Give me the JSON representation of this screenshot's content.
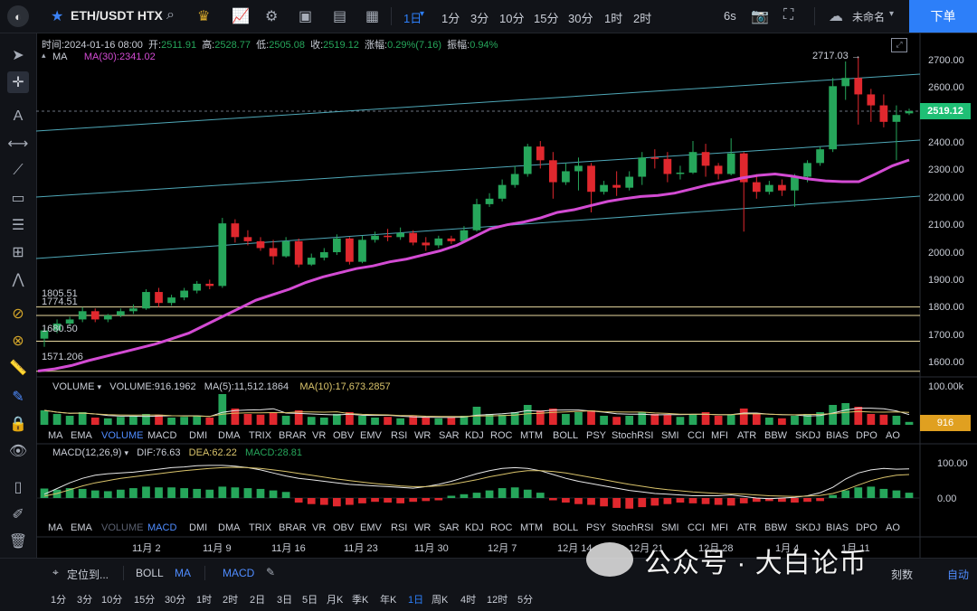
{
  "topbar": {
    "symbol": "ETH/USDT HTX",
    "timeframes": [
      "1日",
      "1分",
      "3分",
      "10分",
      "15分",
      "30分",
      "1时",
      "2时"
    ],
    "active_timeframe": "1日",
    "interval_setting": "6s",
    "layout_name": "未命名",
    "order_button": "下单"
  },
  "ohlc": {
    "time": "时间:2024-01-16 08:00",
    "open_label": "开:",
    "open": "2511.91",
    "high_label": "高:",
    "high": "2528.77",
    "low_label": "低:",
    "low": "2505.08",
    "close_label": "收:",
    "close": "2519.12",
    "change_label": "涨幅:",
    "change": "0.29%(7.16)",
    "amp_label": "振幅:",
    "amp": "0.94%"
  },
  "ma_legend": {
    "name": "MA",
    "ma30": "MA(30):2341.02"
  },
  "price_axis": {
    "ticks": [
      "2700.00",
      "2600.00",
      "2500.00",
      "2400.00",
      "2300.00",
      "2200.00",
      "2100.00",
      "2000.00",
      "1900.00",
      "1800.00",
      "1700.00",
      "1600.00"
    ],
    "current_price": "2519.12",
    "high_annotation": "2717.03 →"
  },
  "hlines": {
    "l1": "1805.51",
    "l2": "1774.51",
    "l3": "1680.50",
    "l4": "1571.206"
  },
  "volume": {
    "name": "VOLUME",
    "value": "VOLUME:916.1962",
    "ma5": "MA(5):11,512.1864",
    "ma10": "MA(10):17,673.2857",
    "axis_top": "100.00k",
    "current_tag": "916"
  },
  "indicator_tabs": [
    "MA",
    "EMA",
    "VOLUME",
    "MACD",
    "DMI",
    "DMA",
    "TRIX",
    "BRAR",
    "VR",
    "OBV",
    "EMV",
    "RSI",
    "WR",
    "SAR",
    "KDJ",
    "ROC",
    "MTM",
    "BOLL",
    "PSY",
    "StochRSI",
    "SMI",
    "CCI",
    "MFI",
    "ATR",
    "BBW",
    "SKDJ",
    "BIAS",
    "DPO",
    "AO"
  ],
  "macd": {
    "name": "MACD(12,26,9)",
    "dif": "DIF:76.63",
    "dea": "DEA:62.22",
    "macd": "MACD:28.81",
    "axis": [
      "100.00",
      "0.00"
    ]
  },
  "time_axis": [
    "11月 2",
    "11月 9",
    "11月 16",
    "11月 23",
    "11月 30",
    "12月 7",
    "12月 14",
    "12月 21",
    "12月 28",
    "1月 4",
    "1月 11"
  ],
  "bottom": {
    "locate": "定位到...",
    "boll": "BOLL",
    "ma": "MA",
    "macd": "MACD",
    "auto": "自动",
    "scale": "刻数",
    "timeframes": [
      "1分",
      "3分",
      "10分",
      "15分",
      "30分",
      "1时",
      "2时",
      "2日",
      "3日",
      "5日",
      "月K",
      "季K",
      "年K",
      "1日",
      "周K",
      "4时",
      "12时",
      "5分"
    ],
    "active_timeframe": "1日"
  },
  "watermark": "公众号 · 大白论币",
  "colors": {
    "up": "#26a65b",
    "down": "#e0282e",
    "accent": "#2d7ff9",
    "ma": "#d34bd3",
    "channel": "#4fa8b8"
  },
  "chart_data": {
    "type": "candlestick",
    "ma_series": [
      1572,
      1580,
      1592,
      1610,
      1625,
      1640,
      1655,
      1670,
      1690,
      1710,
      1740,
      1770,
      1800,
      1830,
      1850,
      1870,
      1895,
      1915,
      1930,
      1945,
      1955,
      1970,
      1980,
      1995,
      2010,
      2030,
      2060,
      2090,
      2105,
      2115,
      2130,
      2150,
      2160,
      2175,
      2190,
      2200,
      2208,
      2212,
      2220,
      2235,
      2250,
      2262,
      2275,
      2285,
      2290,
      2282,
      2272,
      2265,
      2262,
      2262,
      2290,
      2320,
      2341
    ],
    "candles": [
      [
        1690,
        1720,
        1660,
        1730
      ],
      [
        1720,
        1745,
        1710,
        1760
      ],
      [
        1745,
        1760,
        1735,
        1770
      ],
      [
        1760,
        1790,
        1750,
        1805
      ],
      [
        1790,
        1760,
        1750,
        1800
      ],
      [
        1760,
        1775,
        1750,
        1780
      ],
      [
        1775,
        1790,
        1768,
        1800
      ],
      [
        1790,
        1800,
        1780,
        1815
      ],
      [
        1800,
        1860,
        1795,
        1870
      ],
      [
        1860,
        1820,
        1805,
        1875
      ],
      [
        1820,
        1840,
        1810,
        1850
      ],
      [
        1840,
        1865,
        1830,
        1875
      ],
      [
        1865,
        1890,
        1855,
        1900
      ],
      [
        1890,
        1882,
        1870,
        1905
      ],
      [
        1882,
        2110,
        1875,
        2130
      ],
      [
        2110,
        2060,
        2040,
        2125
      ],
      [
        2060,
        2045,
        2030,
        2085
      ],
      [
        2045,
        2020,
        2010,
        2060
      ],
      [
        2020,
        1990,
        1960,
        2050
      ],
      [
        1990,
        2045,
        1985,
        2060
      ],
      [
        2045,
        1960,
        1950,
        2055
      ],
      [
        1960,
        1985,
        1955,
        2000
      ],
      [
        1985,
        2005,
        1975,
        2020
      ],
      [
        2005,
        2055,
        1995,
        2070
      ],
      [
        2055,
        1970,
        1960,
        2060
      ],
      [
        1970,
        2050,
        1965,
        2065
      ],
      [
        2050,
        2065,
        2040,
        2080
      ],
      [
        2065,
        2060,
        2045,
        2090
      ],
      [
        2060,
        2075,
        2050,
        2095
      ],
      [
        2075,
        2040,
        2030,
        2085
      ],
      [
        2040,
        2030,
        2010,
        2060
      ],
      [
        2030,
        2055,
        2020,
        2065
      ],
      [
        2055,
        2045,
        2035,
        2065
      ],
      [
        2045,
        2085,
        2040,
        2100
      ],
      [
        2085,
        2180,
        2080,
        2200
      ],
      [
        2180,
        2200,
        2170,
        2220
      ],
      [
        2200,
        2250,
        2190,
        2270
      ],
      [
        2250,
        2290,
        2240,
        2320
      ],
      [
        2290,
        2390,
        2280,
        2400
      ],
      [
        2390,
        2340,
        2310,
        2410
      ],
      [
        2340,
        2260,
        2200,
        2370
      ],
      [
        2260,
        2300,
        2250,
        2330
      ],
      [
        2300,
        2320,
        2230,
        2350
      ],
      [
        2320,
        2225,
        2150,
        2330
      ],
      [
        2225,
        2250,
        2215,
        2265
      ],
      [
        2250,
        2240,
        2210,
        2300
      ],
      [
        2240,
        2280,
        2230,
        2300
      ],
      [
        2280,
        2350,
        2250,
        2370
      ],
      [
        2350,
        2345,
        2310,
        2380
      ],
      [
        2345,
        2290,
        2260,
        2370
      ],
      [
        2290,
        2295,
        2270,
        2320
      ],
      [
        2295,
        2370,
        2290,
        2410
      ],
      [
        2370,
        2320,
        2280,
        2400
      ],
      [
        2320,
        2290,
        2270,
        2330
      ],
      [
        2290,
        2365,
        2285,
        2420
      ],
      [
        2365,
        2260,
        2080,
        2370
      ],
      [
        2260,
        2225,
        2200,
        2290
      ],
      [
        2225,
        2250,
        2215,
        2265
      ],
      [
        2250,
        2230,
        2210,
        2270
      ],
      [
        2230,
        2280,
        2170,
        2290
      ],
      [
        2280,
        2330,
        2260,
        2340
      ],
      [
        2330,
        2380,
        2320,
        2390
      ],
      [
        2380,
        2610,
        2370,
        2640
      ],
      [
        2610,
        2640,
        2560,
        2700
      ],
      [
        2640,
        2580,
        2470,
        2717
      ],
      [
        2580,
        2540,
        2480,
        2600
      ],
      [
        2540,
        2480,
        2460,
        2580
      ],
      [
        2480,
        2505,
        2340,
        2540
      ],
      [
        2511,
        2519,
        2505,
        2528
      ]
    ],
    "volumes": [
      40,
      30,
      25,
      35,
      20,
      18,
      22,
      25,
      30,
      28,
      20,
      22,
      25,
      20,
      85,
      45,
      30,
      28,
      35,
      25,
      40,
      22,
      20,
      30,
      35,
      25,
      20,
      22,
      18,
      25,
      20,
      18,
      20,
      25,
      50,
      30,
      28,
      35,
      55,
      40,
      45,
      30,
      35,
      40,
      25,
      22,
      25,
      35,
      30,
      28,
      22,
      30,
      35,
      25,
      28,
      45,
      30,
      20,
      18,
      25,
      30,
      35,
      55,
      60,
      50,
      30,
      28,
      25,
      8
    ],
    "macd_hist": [
      25,
      22,
      26,
      24,
      20,
      18,
      22,
      26,
      30,
      28,
      28,
      26,
      24,
      22,
      30,
      28,
      26,
      24,
      20,
      16,
      -12,
      -16,
      -18,
      -22,
      -18,
      -14,
      -10,
      -12,
      -14,
      -10,
      -8,
      -6,
      6,
      10,
      14,
      20,
      26,
      28,
      22,
      14,
      -6,
      -12,
      -16,
      -18,
      -22,
      -26,
      -28,
      -24,
      -20,
      -16,
      -12,
      -14,
      -16,
      -18,
      -20,
      -14,
      -10,
      -8,
      -10,
      -12,
      -10,
      -8,
      8,
      20,
      28,
      30,
      24,
      20,
      14
    ],
    "dif": [
      10,
      25,
      40,
      52,
      60,
      64,
      66,
      68,
      72,
      76,
      80,
      82,
      85,
      86,
      86,
      84,
      80,
      74,
      66,
      58,
      52,
      48,
      44,
      40,
      36,
      34,
      32,
      30,
      28,
      26,
      30,
      36,
      44,
      54,
      64,
      72,
      78,
      80,
      78,
      72,
      62,
      52,
      44,
      38,
      32,
      26,
      20,
      16,
      12,
      10,
      8,
      6,
      6,
      6,
      8,
      4,
      0,
      -2,
      0,
      2,
      6,
      14,
      28,
      50,
      66,
      74,
      78,
      76,
      77
    ],
    "dea": [
      5,
      12,
      22,
      32,
      40,
      46,
      52,
      56,
      60,
      64,
      68,
      72,
      75,
      78,
      80,
      81,
      80,
      78,
      74,
      70,
      65,
      60,
      55,
      50,
      46,
      42,
      38,
      35,
      32,
      30,
      30,
      32,
      36,
      42,
      48,
      56,
      62,
      68,
      72,
      72,
      70,
      66,
      60,
      54,
      48,
      42,
      36,
      31,
      26,
      22,
      19,
      16,
      14,
      12,
      11,
      10,
      8,
      6,
      5,
      4,
      5,
      7,
      12,
      22,
      34,
      46,
      54,
      60,
      62
    ]
  }
}
